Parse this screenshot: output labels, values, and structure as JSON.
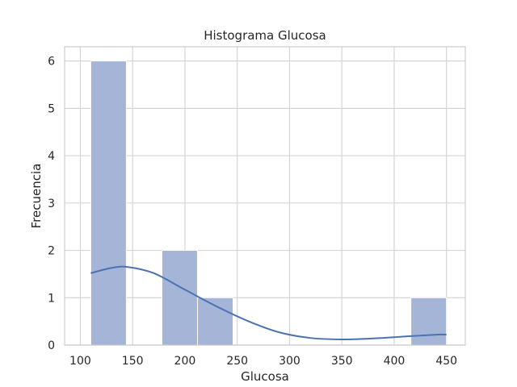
{
  "chart_data": {
    "type": "bar",
    "title": "Histograma Glucosa",
    "xlabel": "Glucosa",
    "ylabel": "Frecuencia",
    "xlim": [
      85,
      468
    ],
    "ylim": [
      0,
      6.3
    ],
    "xticks": [
      100,
      150,
      200,
      250,
      300,
      350,
      400,
      450
    ],
    "yticks": [
      0,
      1,
      2,
      3,
      4,
      5,
      6
    ],
    "grid": true,
    "bins": [
      {
        "x0": 110,
        "x1": 144,
        "count": 6
      },
      {
        "x0": 144,
        "x1": 178,
        "count": 0
      },
      {
        "x0": 178,
        "x1": 212,
        "count": 2
      },
      {
        "x0": 212,
        "x1": 246,
        "count": 1
      },
      {
        "x0": 246,
        "x1": 280,
        "count": 0
      },
      {
        "x0": 280,
        "x1": 314,
        "count": 0
      },
      {
        "x0": 314,
        "x1": 348,
        "count": 0
      },
      {
        "x0": 348,
        "x1": 382,
        "count": 0
      },
      {
        "x0": 382,
        "x1": 416,
        "count": 0
      },
      {
        "x0": 416,
        "x1": 450,
        "count": 1
      }
    ],
    "kde": {
      "x": [
        110,
        130,
        145,
        170,
        200,
        230,
        260,
        290,
        320,
        350,
        380,
        410,
        440,
        450
      ],
      "y": [
        1.52,
        1.63,
        1.65,
        1.52,
        1.17,
        0.82,
        0.51,
        0.27,
        0.15,
        0.12,
        0.14,
        0.18,
        0.22,
        0.22
      ]
    },
    "colors": {
      "bar_fill": "#a4b5d8",
      "bar_edge": "#ffffff",
      "kde_line": "#4c72b0",
      "grid": "#d5d5d5",
      "axes_edge": "#cccccc"
    }
  }
}
